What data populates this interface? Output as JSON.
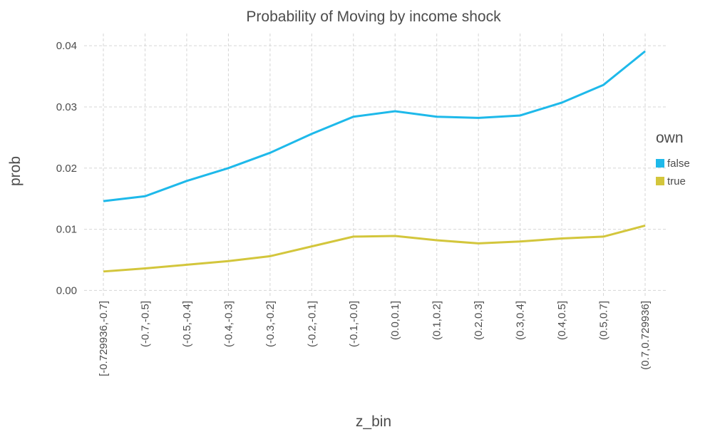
{
  "chart_data": {
    "type": "line",
    "title": "Probability of Moving by income shock",
    "x_label": "z_bin",
    "y_label": "prob",
    "legend_title": "own",
    "legend_position": "right",
    "grid": true,
    "categories": [
      "[-0.729936,-0.7]",
      "(-0.7,-0.5]",
      "(-0.5,-0.4]",
      "(-0.4,-0.3]",
      "(-0.3,-0.2]",
      "(-0.2,-0.1]",
      "(-0.1,-0.0]",
      "(0.0,0.1]",
      "(0.1,0.2]",
      "(0.2,0.3]",
      "(0.3,0.4]",
      "(0.4,0.5]",
      "(0.5,0.7]",
      "(0.7,0.729936]"
    ],
    "series": [
      {
        "name": "false",
        "color": "#1eb9ea",
        "values": [
          0.0146,
          0.0154,
          0.0179,
          0.02,
          0.0225,
          0.0256,
          0.0284,
          0.0293,
          0.0284,
          0.0282,
          0.0286,
          0.0307,
          0.0336,
          0.0391
        ]
      },
      {
        "name": "true",
        "color": "#d3c63c",
        "values": [
          0.0031,
          0.0036,
          0.0042,
          0.0048,
          0.0056,
          0.0072,
          0.0088,
          0.0089,
          0.0082,
          0.0077,
          0.008,
          0.0085,
          0.0088,
          0.0106
        ]
      }
    ],
    "ylim": [
      -0.001,
      0.042
    ],
    "yticks": [
      {
        "value": 0,
        "label": "0.00"
      },
      0.01,
      0.02,
      0.03,
      0.04
    ]
  }
}
